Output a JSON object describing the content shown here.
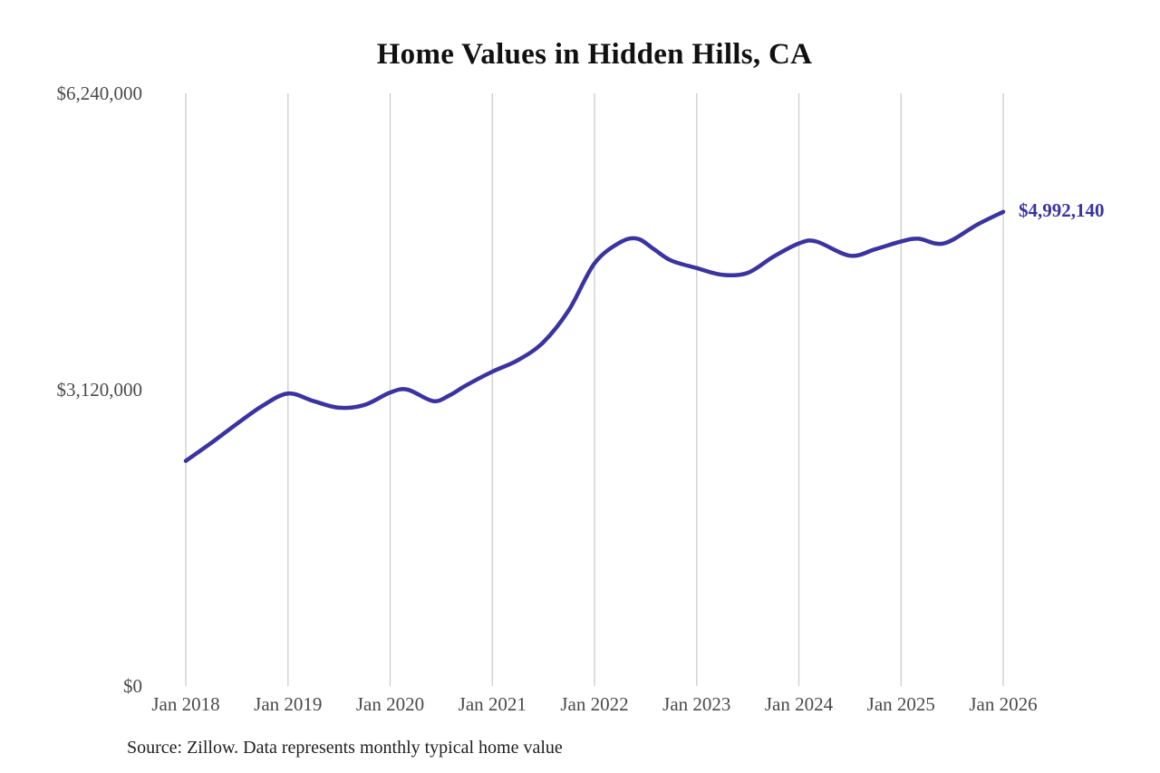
{
  "chart_data": {
    "type": "line",
    "title": "Home Values in Hidden Hills, CA",
    "source_note": "Source: Zillow. Data represents monthly typical home value",
    "end_label": "$4,992,140",
    "latest_value": 4992140,
    "legend": "none",
    "grid": "vertical-only",
    "colors": {
      "line": "#3a33a0",
      "gridline": "#cccccc",
      "axis_text": "#4a4a4a",
      "title_text": "#111111",
      "source_text": "#1f1f1f"
    },
    "x_range": [
      2018,
      2026
    ],
    "ylim": [
      0,
      6240000
    ],
    "x_ticks": [
      {
        "year": 2018,
        "label": "Jan 2018"
      },
      {
        "year": 2019,
        "label": "Jan 2019"
      },
      {
        "year": 2020,
        "label": "Jan 2020"
      },
      {
        "year": 2021,
        "label": "Jan 2021"
      },
      {
        "year": 2022,
        "label": "Jan 2022"
      },
      {
        "year": 2023,
        "label": "Jan 2023"
      },
      {
        "year": 2024,
        "label": "Jan 2024"
      },
      {
        "year": 2025,
        "label": "Jan 2025"
      },
      {
        "year": 2026,
        "label": "Jan 2026"
      }
    ],
    "y_ticks": [
      {
        "value": 0,
        "label": "$0"
      },
      {
        "value": 3120000,
        "label": "$3,120,000"
      },
      {
        "value": 6240000,
        "label": "$6,240,000"
      }
    ],
    "series": [
      {
        "name": "Monthly typical home value",
        "points": [
          [
            2018.0,
            2370000
          ],
          [
            2018.25,
            2560000
          ],
          [
            2018.5,
            2760000
          ],
          [
            2018.75,
            2950000
          ],
          [
            2019.0,
            3080000
          ],
          [
            2019.25,
            3000000
          ],
          [
            2019.5,
            2930000
          ],
          [
            2019.75,
            2960000
          ],
          [
            2020.0,
            3090000
          ],
          [
            2020.17,
            3120000
          ],
          [
            2020.42,
            3000000
          ],
          [
            2020.58,
            3060000
          ],
          [
            2020.75,
            3170000
          ],
          [
            2021.0,
            3310000
          ],
          [
            2021.25,
            3430000
          ],
          [
            2021.5,
            3620000
          ],
          [
            2021.75,
            3960000
          ],
          [
            2022.0,
            4450000
          ],
          [
            2022.25,
            4670000
          ],
          [
            2022.42,
            4710000
          ],
          [
            2022.58,
            4600000
          ],
          [
            2022.75,
            4480000
          ],
          [
            2023.0,
            4400000
          ],
          [
            2023.25,
            4330000
          ],
          [
            2023.5,
            4350000
          ],
          [
            2023.75,
            4520000
          ],
          [
            2024.0,
            4660000
          ],
          [
            2024.17,
            4680000
          ],
          [
            2024.5,
            4530000
          ],
          [
            2024.75,
            4600000
          ],
          [
            2025.0,
            4680000
          ],
          [
            2025.17,
            4710000
          ],
          [
            2025.42,
            4660000
          ],
          [
            2025.75,
            4860000
          ],
          [
            2026.0,
            4992140
          ]
        ]
      }
    ]
  }
}
